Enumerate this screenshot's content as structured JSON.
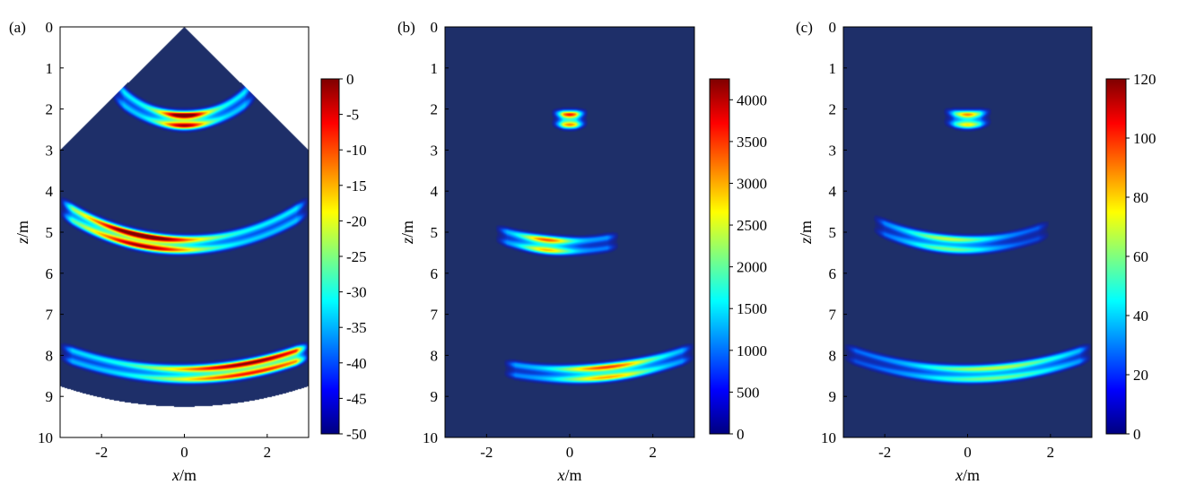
{
  "figure": {
    "panels": [
      "(a)",
      "(b)",
      "(c)"
    ]
  },
  "colormap": [
    "#00007f",
    "#0000ff",
    "#007fff",
    "#00ffff",
    "#7fff7f",
    "#ffff00",
    "#ff7f00",
    "#ff0000",
    "#7f0000"
  ],
  "background_color": "#1e2f69",
  "chart_data": [
    {
      "type": "heatmap",
      "panel_label": "(a)",
      "xlabel": "x/m",
      "ylabel": "z/m",
      "xlim": [
        -3,
        3
      ],
      "ylim": [
        0,
        10
      ],
      "y_inverted": true,
      "x_ticks": [
        "-2",
        "0",
        "2"
      ],
      "y_ticks": [
        "0",
        "1",
        "2",
        "3",
        "4",
        "5",
        "6",
        "7",
        "8",
        "9",
        "10"
      ],
      "colorbar": {
        "min": -50,
        "max": 0,
        "ticks": [
          "0",
          "-5",
          "-10",
          "-15",
          "-20",
          "-25",
          "-30",
          "-35",
          "-40",
          "-45",
          "-50"
        ]
      },
      "mask": "sector",
      "sector": {
        "apex": [
          0,
          0
        ],
        "half_angle_deg": 45,
        "radius": 9.25
      },
      "arcs": [
        {
          "z": 2.27,
          "lo": -1.75,
          "hi": 1.75,
          "peak_x": 0.0,
          "sx": 0.4,
          "level": 0.9
        },
        {
          "z": 5.3,
          "lo": -3.0,
          "hi": 3.0,
          "peak_x": -1.0,
          "sx": 0.95,
          "level": 0.9
        },
        {
          "z": 8.45,
          "lo": -3.0,
          "hi": 3.0,
          "peak_x": 1.6,
          "sx": 1.5,
          "level": 0.78
        }
      ]
    },
    {
      "type": "heatmap",
      "panel_label": "(b)",
      "xlabel": "x/m",
      "ylabel": "z/m",
      "xlim": [
        -3,
        3
      ],
      "ylim": [
        0,
        10
      ],
      "y_inverted": true,
      "x_ticks": [
        "-2",
        "0",
        "2"
      ],
      "y_ticks": [
        "0",
        "1",
        "2",
        "3",
        "4",
        "5",
        "6",
        "7",
        "8",
        "9",
        "10"
      ],
      "colorbar": {
        "min": 0,
        "max": 4250,
        "ticks": [
          "0",
          "500",
          "1000",
          "1500",
          "2000",
          "2500",
          "3000",
          "3500",
          "4000"
        ]
      },
      "mask": "none",
      "arcs": [
        {
          "z": 2.25,
          "lo": -0.45,
          "hi": 0.45,
          "peak_x": 0.0,
          "sx": 0.2,
          "level": 0.66
        },
        {
          "z": 5.33,
          "lo": -1.8,
          "hi": 1.2,
          "peak_x": -0.55,
          "sx": 0.4,
          "level": 0.6
        },
        {
          "z": 8.45,
          "lo": -1.6,
          "hi": 3.0,
          "peak_x": 0.9,
          "sx": 0.75,
          "level": 0.62
        }
      ]
    },
    {
      "type": "heatmap",
      "panel_label": "(c)",
      "xlabel": "x/m",
      "ylabel": "z/m",
      "xlim": [
        -3,
        3
      ],
      "ylim": [
        0,
        10
      ],
      "y_inverted": true,
      "x_ticks": [
        "-2",
        "0",
        "2"
      ],
      "y_ticks": [
        "0",
        "1",
        "2",
        "3",
        "4",
        "5",
        "6",
        "7",
        "8",
        "9",
        "10"
      ],
      "colorbar": {
        "min": 0,
        "max": 120,
        "ticks": [
          "0",
          "20",
          "40",
          "60",
          "80",
          "100",
          "120"
        ]
      },
      "mask": "none",
      "arcs": [
        {
          "z": 2.25,
          "lo": -0.6,
          "hi": 0.6,
          "peak_x": 0.0,
          "sx": 0.22,
          "level": 0.56
        },
        {
          "z": 5.3,
          "lo": -2.3,
          "hi": 2.0,
          "peak_x": -0.45,
          "sx": 0.75,
          "level": 0.4
        },
        {
          "z": 8.45,
          "lo": -3.0,
          "hi": 3.0,
          "peak_x": 0.6,
          "sx": 1.3,
          "level": 0.4
        }
      ]
    }
  ]
}
